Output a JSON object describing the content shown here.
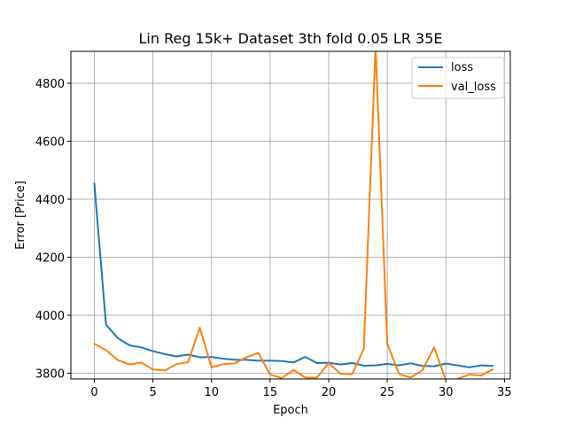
{
  "chart_data": {
    "type": "line",
    "title": "Lin Reg 15k+ Dataset 3th fold 0.05 LR 35E",
    "xlabel": "Epoch",
    "ylabel": "Error [Price]",
    "xlim": [
      -2,
      35.5
    ],
    "ylim": [
      3780,
      4910
    ],
    "xticks": [
      0,
      5,
      10,
      15,
      20,
      25,
      30,
      35
    ],
    "yticks": [
      3800,
      4000,
      4200,
      4400,
      4600,
      4800
    ],
    "grid": true,
    "legend_position": "top-right",
    "x": [
      0,
      1,
      2,
      3,
      4,
      5,
      6,
      7,
      8,
      9,
      10,
      11,
      12,
      13,
      14,
      15,
      16,
      17,
      18,
      19,
      20,
      21,
      22,
      23,
      24,
      25,
      26,
      27,
      28,
      29,
      30,
      31,
      32,
      33,
      34
    ],
    "series": [
      {
        "name": "loss",
        "color": "#1f77b4",
        "values": [
          4455,
          3967,
          3921,
          3896,
          3889,
          3876,
          3866,
          3858,
          3864,
          3855,
          3856,
          3850,
          3846,
          3846,
          3843,
          3843,
          3842,
          3837,
          3856,
          3835,
          3836,
          3830,
          3835,
          3826,
          3827,
          3832,
          3827,
          3834,
          3825,
          3824,
          3833,
          3827,
          3820,
          3827,
          3825
        ]
      },
      {
        "name": "val_loss",
        "color": "#ff7f0e",
        "values": [
          3901,
          3880,
          3845,
          3830,
          3837,
          3813,
          3809,
          3831,
          3838,
          3957,
          3820,
          3831,
          3834,
          3855,
          3870,
          3795,
          3783,
          3811,
          3785,
          3785,
          3835,
          3798,
          3796,
          3885,
          4928,
          3902,
          3797,
          3785,
          3810,
          3889,
          3775,
          3780,
          3795,
          3792,
          3813
        ]
      }
    ]
  }
}
